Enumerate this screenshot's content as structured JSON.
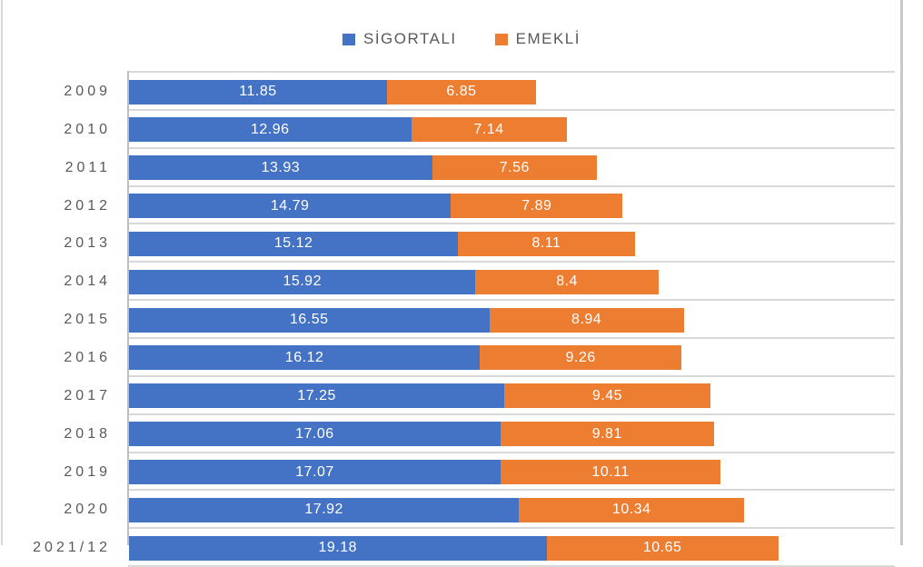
{
  "colors": {
    "sigortali_blue": "#4472C4",
    "emekli_orange": "#ED7D31",
    "label_gray": "#595959",
    "gridline_gray": "#D9D9D9",
    "axis_gray": "#BFBFBF"
  },
  "chart_data": {
    "type": "bar",
    "orientation": "horizontal-stacked",
    "title": "",
    "xlabel": "",
    "ylabel": "",
    "xlim": [
      0,
      35
    ],
    "grid": true,
    "legend_position": "top",
    "categories": [
      "2009",
      "2010",
      "2011",
      "2012",
      "2013",
      "2014",
      "2015",
      "2016",
      "2017",
      "2018",
      "2019",
      "2020",
      "2021/12"
    ],
    "series": [
      {
        "name": "SİGORTALI",
        "color": "#4472C4",
        "values": [
          11.85,
          12.96,
          13.93,
          14.79,
          15.12,
          15.92,
          16.55,
          16.12,
          17.25,
          17.06,
          17.07,
          17.92,
          19.18
        ]
      },
      {
        "name": "EMEKLİ",
        "color": "#ED7D31",
        "values": [
          6.85,
          7.14,
          7.56,
          7.89,
          8.11,
          8.4,
          8.94,
          9.26,
          9.45,
          9.81,
          10.11,
          10.34,
          10.65
        ]
      }
    ]
  }
}
